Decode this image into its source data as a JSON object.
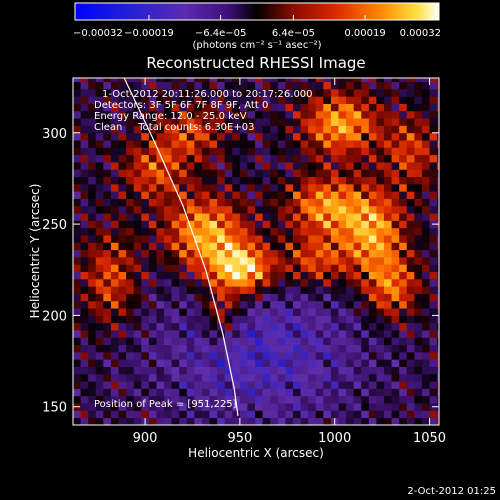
{
  "chart_data": {
    "type": "heatmap",
    "title": "Reconstructed RHESSI Image",
    "xlabel": "Heliocentric X (arcsec)",
    "ylabel": "Heliocentric Y (arcsec)",
    "xlim": [
      862,
      1055
    ],
    "ylim": [
      140,
      330
    ],
    "x_ticks": [
      {
        "value": 900,
        "label": "900"
      },
      {
        "value": 950,
        "label": "950"
      },
      {
        "value": 1000,
        "label": "1000"
      },
      {
        "value": 1050,
        "label": "1050"
      }
    ],
    "y_ticks": [
      {
        "value": 150,
        "label": "150"
      },
      {
        "value": 200,
        "label": "200"
      },
      {
        "value": 250,
        "label": "250"
      },
      {
        "value": 300,
        "label": "300"
      }
    ],
    "colorbar": {
      "unit_label": "(photons cm⁻² s⁻¹ asec⁻²)",
      "range": [
        -0.00032,
        0.00032
      ],
      "ticks": [
        {
          "value": -0.00032,
          "label": "−0.00032"
        },
        {
          "value": -0.00019,
          "label": "−0.00019"
        },
        {
          "value": -6.4e-05,
          "label": "−6.4e−05"
        },
        {
          "value": 6.4e-05,
          "label": "6.4e−05"
        },
        {
          "value": 0.00019,
          "label": "0.00019"
        },
        {
          "value": 0.00032,
          "label": "0.00032"
        }
      ]
    },
    "annotations": {
      "time_range": "1-Oct-2012 20:11:26.000 to 20:17:26.000",
      "detectors": "Detectors: 3F 5F 6F 7F 8F 9F, Att 0",
      "energy": "Energy Range: 12.0 - 25.0 keV",
      "clean": "Clean     Total counts: 6.30E+03",
      "peak": "Position of Peak = [951,225]"
    },
    "limb_curve": [
      [
        889,
        330
      ],
      [
        905,
        295
      ],
      [
        920,
        260
      ],
      [
        932,
        225
      ],
      [
        941,
        190
      ],
      [
        947,
        160
      ],
      [
        949,
        145
      ]
    ],
    "emission_peaks": [
      {
        "x": 951,
        "y": 225,
        "amp": 1.0,
        "sx": 12,
        "sy": 10
      },
      {
        "x": 932,
        "y": 245,
        "amp": 0.8,
        "sx": 15,
        "sy": 14
      },
      {
        "x": 995,
        "y": 260,
        "amp": 0.7,
        "sx": 14,
        "sy": 11
      },
      {
        "x": 1020,
        "y": 245,
        "amp": 0.75,
        "sx": 12,
        "sy": 16
      },
      {
        "x": 1030,
        "y": 215,
        "amp": 0.6,
        "sx": 10,
        "sy": 12
      },
      {
        "x": 1003,
        "y": 305,
        "amp": 0.75,
        "sx": 14,
        "sy": 12
      },
      {
        "x": 990,
        "y": 230,
        "amp": 0.55,
        "sx": 12,
        "sy": 10
      },
      {
        "x": 882,
        "y": 220,
        "amp": 0.5,
        "sx": 10,
        "sy": 18
      },
      {
        "x": 905,
        "y": 280,
        "amp": 0.5,
        "sx": 12,
        "sy": 12
      },
      {
        "x": 925,
        "y": 300,
        "amp": 0.45,
        "sx": 12,
        "sy": 10
      },
      {
        "x": 1040,
        "y": 290,
        "amp": 0.45,
        "sx": 10,
        "sy": 14
      },
      {
        "x": 940,
        "y": 200,
        "amp": 0.5,
        "sx": 8,
        "sy": 10
      }
    ],
    "negative_region": {
      "x": 960,
      "y": 180,
      "amp": -0.45,
      "sx": 40,
      "sy": 30
    },
    "footer_timestamp": "2-Oct-2012 01:25"
  }
}
